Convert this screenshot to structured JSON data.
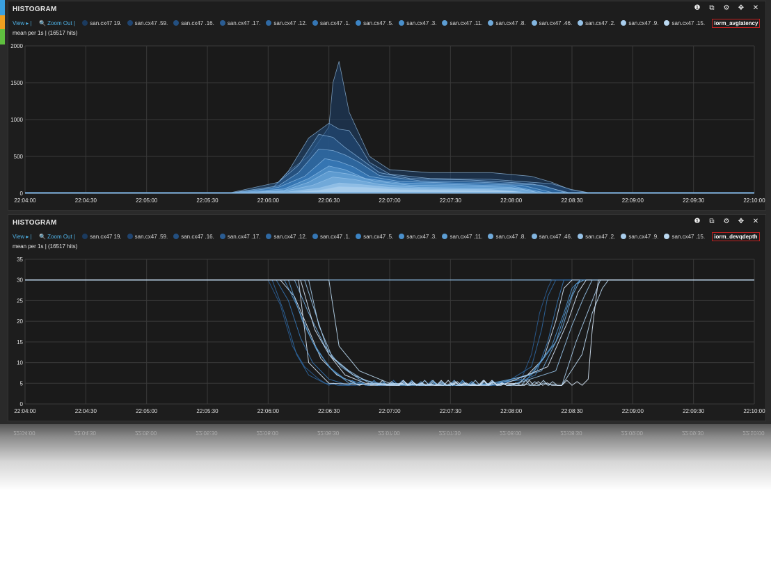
{
  "colors": {
    "strip_top": "#3aa0e0",
    "strip_mid": "#f0a020",
    "strip_bot": "#5fbf3f",
    "series": [
      "#173050",
      "#1b3a5e",
      "#1f4470",
      "#234f80",
      "#2a5c92",
      "#2f69a3",
      "#3576b4",
      "#3c84c4",
      "#4a90cc",
      "#5c9dd3",
      "#6fa9da",
      "#82b5e0",
      "#95c1e6",
      "#a8cdec",
      "#bbd9f1",
      "#cfe4f6"
    ]
  },
  "panels": [
    {
      "title": "HISTOGRAM",
      "icons": [
        "info-icon",
        "copy-icon",
        "gear-icon",
        "move-icon",
        "close-icon"
      ],
      "icon_glyphs": [
        "❶",
        "⧉",
        "⚙",
        "✥",
        "✕"
      ],
      "view_label": "View ▸ |",
      "zoom_label": "🔍 Zoom Out |",
      "series_labels": [
        "san.cx47 19.",
        "san.cx47 .59.",
        "san.cx47 .16.",
        "san.cx47 .17.",
        "san.cx47 .12.",
        "san.cx47 .1.",
        "san.cx47 .5.",
        "san.cx47 .3.",
        "san.cx47 .11.",
        "san.cx47 .8.",
        "san.cx47 .46.",
        "san.cx47 .2.",
        "san.cx47 .9.",
        "san.cx47 .15."
      ],
      "metric": "iorm_avglatency",
      "suffix": "mean per 1s | (16517 hits)"
    },
    {
      "title": "HISTOGRAM",
      "icons": [
        "info-icon",
        "copy-icon",
        "gear-icon",
        "move-icon",
        "close-icon"
      ],
      "icon_glyphs": [
        "❶",
        "⧉",
        "⚙",
        "✥",
        "✕"
      ],
      "view_label": "View ▸ |",
      "zoom_label": "🔍 Zoom Out |",
      "series_labels": [
        "san.cx47 19.",
        "san.cx47 .59.",
        "san.cx47 .16.",
        "san.cx47 .17.",
        "san.cx47 .12.",
        "san.cx47 .1.",
        "san.cx47 .5.",
        "san.cx47 .3.",
        "san.cx47 .11.",
        "san.cx47 .8.",
        "san.cx47 .46.",
        "san.cx47 .2.",
        "san.cx47 .9.",
        "san.cx47 .15."
      ],
      "metric": "iorm_devqdepth",
      "suffix": "mean per 1s | (16517 hits)"
    }
  ],
  "chart_data": [
    {
      "type": "area",
      "x_ticks": [
        "22:04:00",
        "22:04:30",
        "22:05:00",
        "22:05:30",
        "22:06:00",
        "22:06:30",
        "22:07:00",
        "22:07:30",
        "22:08:00",
        "22:08:30",
        "22:09:00",
        "22:09:30",
        "22:10:00"
      ],
      "y_ticks": [
        "0",
        "500",
        "1000",
        "1500",
        "2000"
      ],
      "ylim": [
        0,
        2000
      ],
      "xlim_seconds": [
        0,
        360
      ],
      "grid": true,
      "series": [
        {
          "x": [
            0,
            100,
            120,
            125,
            130,
            140,
            150,
            152,
            155,
            160,
            170,
            180,
            200,
            230,
            250,
            260,
            270,
            280,
            360
          ],
          "y": [
            0,
            0,
            20,
            150,
            300,
            500,
            900,
            1500,
            1790,
            1100,
            500,
            320,
            280,
            280,
            230,
            150,
            40,
            0,
            0
          ]
        },
        {
          "x": [
            0,
            100,
            122,
            130,
            140,
            150,
            155,
            160,
            165,
            170,
            180,
            200,
            230,
            260,
            270,
            280,
            360
          ],
          "y": [
            0,
            0,
            60,
            300,
            750,
            950,
            870,
            850,
            650,
            420,
            260,
            200,
            190,
            130,
            50,
            0,
            0
          ]
        },
        {
          "x": [
            0,
            100,
            125,
            135,
            145,
            152,
            158,
            165,
            175,
            190,
            220,
            250,
            270,
            360
          ],
          "y": [
            0,
            0,
            150,
            380,
            800,
            760,
            620,
            480,
            280,
            200,
            180,
            130,
            0,
            0
          ]
        },
        {
          "x": [
            0,
            100,
            125,
            135,
            145,
            152,
            158,
            165,
            175,
            195,
            225,
            255,
            268,
            360
          ],
          "y": [
            0,
            0,
            100,
            280,
            600,
            580,
            520,
            420,
            240,
            170,
            150,
            110,
            0,
            0
          ]
        },
        {
          "x": [
            0,
            100,
            125,
            138,
            148,
            155,
            162,
            170,
            185,
            210,
            245,
            262,
            360
          ],
          "y": [
            0,
            0,
            80,
            230,
            470,
            430,
            360,
            230,
            160,
            140,
            110,
            0,
            0
          ]
        },
        {
          "x": [
            0,
            100,
            128,
            140,
            150,
            158,
            168,
            185,
            210,
            240,
            258,
            360
          ],
          "y": [
            0,
            0,
            60,
            200,
            370,
            320,
            200,
            140,
            120,
            100,
            0,
            0
          ]
        },
        {
          "x": [
            0,
            100,
            128,
            140,
            150,
            160,
            172,
            190,
            215,
            240,
            255,
            360
          ],
          "y": [
            0,
            0,
            40,
            150,
            300,
            260,
            170,
            110,
            100,
            80,
            0,
            0
          ]
        },
        {
          "x": [
            0,
            100,
            128,
            142,
            152,
            162,
            175,
            195,
            220,
            245,
            255,
            360
          ],
          "y": [
            0,
            0,
            30,
            110,
            220,
            190,
            120,
            80,
            70,
            60,
            0,
            0
          ]
        },
        {
          "x": [
            0,
            100,
            130,
            145,
            155,
            165,
            180,
            200,
            230,
            252,
            360
          ],
          "y": [
            0,
            0,
            20,
            70,
            140,
            120,
            80,
            60,
            50,
            0,
            0
          ]
        },
        {
          "x": [
            0,
            100,
            130,
            145,
            155,
            168,
            185,
            210,
            240,
            250,
            360
          ],
          "y": [
            0,
            0,
            10,
            40,
            90,
            80,
            50,
            40,
            30,
            0,
            0
          ]
        }
      ]
    },
    {
      "type": "line",
      "x_ticks": [
        "22:04:00",
        "22:04:30",
        "22:05:00",
        "22:05:30",
        "22:06:00",
        "22:06:30",
        "22:07:00",
        "22:07:30",
        "22:08:00",
        "22:08:30",
        "22:09:00",
        "22:09:30",
        "22:10:00"
      ],
      "y_ticks": [
        "0",
        "5",
        "10",
        "15",
        "20",
        "25",
        "30",
        "35"
      ],
      "ylim": [
        0,
        35
      ],
      "xlim_seconds": [
        0,
        360
      ],
      "grid": true,
      "baseline": {
        "x": [
          0,
          360
        ],
        "y": [
          30,
          30
        ]
      },
      "series": [
        {
          "x": [
            0,
            120,
            126,
            132,
            138,
            145,
            150,
            170,
            200,
            230,
            245,
            250,
            254,
            258,
            260,
            360
          ],
          "y": [
            30,
            30,
            24,
            14,
            9,
            6,
            4.5,
            4.5,
            4.5,
            4.5,
            6,
            12,
            22,
            28,
            30,
            30
          ]
        },
        {
          "x": [
            0,
            122,
            128,
            134,
            140,
            148,
            155,
            175,
            205,
            235,
            250,
            255,
            258,
            262,
            360
          ],
          "y": [
            30,
            30,
            22,
            12,
            7,
            5,
            4.5,
            4.5,
            4.5,
            4.5,
            9,
            18,
            26,
            30,
            30
          ]
        },
        {
          "x": [
            0,
            124,
            130,
            136,
            142,
            150,
            160,
            180,
            210,
            240,
            252,
            258,
            263,
            266,
            360
          ],
          "y": [
            30,
            30,
            25,
            16,
            10,
            6,
            4.5,
            4.5,
            4.5,
            4.5,
            7,
            15,
            25,
            30,
            30
          ]
        },
        {
          "x": [
            0,
            126,
            133,
            140,
            146,
            154,
            165,
            190,
            215,
            244,
            256,
            262,
            266,
            270,
            360
          ],
          "y": [
            30,
            30,
            26,
            18,
            11,
            7,
            4.5,
            4.5,
            4.5,
            5,
            11,
            20,
            28,
            30,
            30
          ]
        },
        {
          "x": [
            0,
            128,
            134,
            142,
            150,
            158,
            170,
            195,
            220,
            248,
            260,
            266,
            270,
            274,
            360
          ],
          "y": [
            30,
            30,
            24,
            15,
            9,
            6,
            4.5,
            4.5,
            4.5,
            6,
            14,
            22,
            28,
            30,
            30
          ]
        },
        {
          "x": [
            0,
            130,
            137,
            144,
            152,
            160,
            175,
            200,
            225,
            250,
            262,
            268,
            272,
            276,
            360
          ],
          "y": [
            30,
            30,
            20,
            13,
            8,
            5,
            4.5,
            4.5,
            4.5,
            7,
            15,
            24,
            29,
            30,
            30
          ]
        },
        {
          "x": [
            0,
            133,
            140,
            148,
            156,
            165,
            180,
            205,
            230,
            255,
            265,
            270,
            274,
            278,
            360
          ],
          "y": [
            30,
            30,
            22,
            14,
            9,
            6,
            4.5,
            4.5,
            4.5,
            8,
            18,
            26,
            30,
            30,
            30
          ]
        },
        {
          "x": [
            0,
            136,
            143,
            150,
            158,
            168,
            185,
            210,
            235,
            258,
            268,
            273,
            277,
            281,
            360
          ],
          "y": [
            30,
            30,
            18,
            12,
            7,
            5,
            4.5,
            4.5,
            4.5,
            9,
            20,
            27,
            30,
            30,
            30
          ]
        },
        {
          "x": [
            0,
            138,
            144,
            150,
            160,
            170,
            190,
            215,
            240,
            262,
            270,
            276,
            280,
            284,
            360
          ],
          "y": [
            30,
            30,
            21,
            12,
            8,
            5,
            4.5,
            4.5,
            4.5,
            8,
            19,
            26,
            30,
            30,
            30
          ]
        },
        {
          "x": [
            0,
            140,
            145,
            152,
            162,
            172,
            195,
            220,
            245,
            265,
            272,
            280,
            284,
            287,
            360
          ],
          "y": [
            30,
            30,
            19,
            11,
            7,
            5,
            4.5,
            4.5,
            4.5,
            4.5,
            15,
            25,
            30,
            30,
            30
          ]
        },
        {
          "x": [
            0,
            150,
            155,
            165,
            180,
            210,
            240,
            265,
            275,
            280,
            285,
            288,
            360
          ],
          "y": [
            30,
            30,
            14,
            8,
            5,
            4.5,
            4.5,
            4.5,
            12,
            22,
            28,
            30,
            30
          ]
        },
        {
          "x": [
            0,
            135,
            140,
            150,
            180,
            220,
            260,
            275,
            278,
            280,
            283,
            360
          ],
          "y": [
            30,
            30,
            10,
            5,
            4.5,
            4.5,
            4.5,
            4.5,
            6,
            18,
            30,
            30
          ]
        }
      ]
    }
  ]
}
